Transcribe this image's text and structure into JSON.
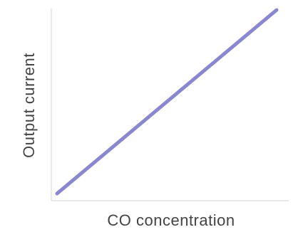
{
  "chart_data": {
    "type": "line",
    "title": "",
    "xlabel": "CO concentration",
    "ylabel": "Output current",
    "xlim": [
      0,
      1
    ],
    "ylim": [
      0,
      1
    ],
    "grid": false,
    "legend": "none",
    "series": [
      {
        "x": [
          0,
          1
        ],
        "y": [
          0,
          1
        ],
        "color": "#8a86cf"
      }
    ]
  }
}
